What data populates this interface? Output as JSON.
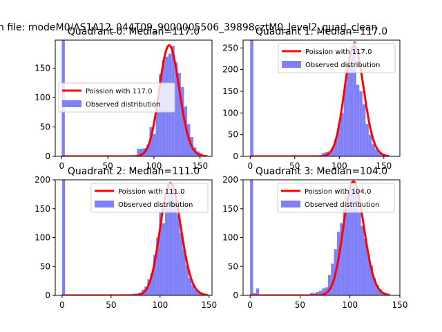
{
  "suptitle": "n file: modeM0/AS1A12_044T09_9000005506_39898cztM0_level2_quad_clean",
  "colors": {
    "bar": "#8080f8",
    "curve": "#ff0000",
    "axis": "#000000",
    "legend_edge": "#cccccc"
  },
  "chart_data": [
    {
      "type": "bar",
      "title": "Quadrant 0: Median=117.0",
      "xlim": [
        -7,
        163
      ],
      "ylim": [
        0,
        198
      ],
      "xticks": [
        0,
        50,
        100,
        150
      ],
      "yticks": [
        0,
        50,
        100,
        150
      ],
      "legend_position": "center-left",
      "series": [
        {
          "name": "Poission with 117.0",
          "kind": "line",
          "mean": 117.0,
          "peak": 189
        },
        {
          "name": "Observed distribution",
          "kind": "histogram",
          "bins": [
            {
              "x0": 0,
              "x1": 3.4,
              "y": 198
            },
            {
              "x0": 81.6,
              "x1": 85,
              "y": 13
            },
            {
              "x0": 85,
              "x1": 88.4,
              "y": 13
            },
            {
              "x0": 88.4,
              "x1": 91.8,
              "y": 14
            },
            {
              "x0": 91.8,
              "x1": 95.2,
              "y": 20
            },
            {
              "x0": 95.2,
              "x1": 98.6,
              "y": 50
            },
            {
              "x0": 98.6,
              "x1": 102,
              "y": 38
            },
            {
              "x0": 102,
              "x1": 105.4,
              "y": 83
            },
            {
              "x0": 105.4,
              "x1": 108.8,
              "y": 140
            },
            {
              "x0": 108.8,
              "x1": 112.2,
              "y": 163
            },
            {
              "x0": 112.2,
              "x1": 115.6,
              "y": 170
            },
            {
              "x0": 115.6,
              "x1": 119,
              "y": 175
            },
            {
              "x0": 119,
              "x1": 122.4,
              "y": 188
            },
            {
              "x0": 122.4,
              "x1": 125.8,
              "y": 160
            },
            {
              "x0": 125.8,
              "x1": 129.2,
              "y": 142
            },
            {
              "x0": 129.2,
              "x1": 132.6,
              "y": 118
            },
            {
              "x0": 132.6,
              "x1": 136,
              "y": 85
            },
            {
              "x0": 136,
              "x1": 139.4,
              "y": 55
            },
            {
              "x0": 139.4,
              "x1": 142.8,
              "y": 33
            },
            {
              "x0": 142.8,
              "x1": 146.2,
              "y": 15
            },
            {
              "x0": 146.2,
              "x1": 149.6,
              "y": 8
            },
            {
              "x0": 149.6,
              "x1": 153,
              "y": 5
            },
            {
              "x0": 153,
              "x1": 156.4,
              "y": 2
            }
          ]
        }
      ]
    },
    {
      "type": "bar",
      "title": "Quadrant 1: Median=117.0",
      "xlim": [
        -8,
        168
      ],
      "ylim": [
        0,
        268
      ],
      "xticks": [
        0,
        50,
        100,
        150
      ],
      "yticks": [
        0,
        50,
        100,
        150,
        200,
        250
      ],
      "legend_position": "upper-right",
      "series": [
        {
          "name": "Poission with 117.0",
          "kind": "line",
          "mean": 117.0,
          "peak": 255
        },
        {
          "name": "Observed distribution",
          "kind": "histogram",
          "bins": [
            {
              "x0": 0,
              "x1": 3.5,
              "y": 268
            },
            {
              "x0": 80.5,
              "x1": 84,
              "y": 8
            },
            {
              "x0": 84,
              "x1": 87.5,
              "y": 10
            },
            {
              "x0": 87.5,
              "x1": 91,
              "y": 12
            },
            {
              "x0": 91,
              "x1": 94.5,
              "y": 20
            },
            {
              "x0": 94.5,
              "x1": 98,
              "y": 40
            },
            {
              "x0": 98,
              "x1": 101.5,
              "y": 75
            },
            {
              "x0": 101.5,
              "x1": 105,
              "y": 100
            },
            {
              "x0": 105,
              "x1": 108.5,
              "y": 165
            },
            {
              "x0": 108.5,
              "x1": 112,
              "y": 210
            },
            {
              "x0": 112,
              "x1": 115.5,
              "y": 245
            },
            {
              "x0": 115.5,
              "x1": 119,
              "y": 265
            },
            {
              "x0": 119,
              "x1": 122.5,
              "y": 165
            },
            {
              "x0": 122.5,
              "x1": 126,
              "y": 150
            },
            {
              "x0": 126,
              "x1": 129.5,
              "y": 120
            },
            {
              "x0": 129.5,
              "x1": 133,
              "y": 75
            },
            {
              "x0": 133,
              "x1": 136.5,
              "y": 50
            },
            {
              "x0": 136.5,
              "x1": 140,
              "y": 28
            },
            {
              "x0": 140,
              "x1": 143.5,
              "y": 16
            },
            {
              "x0": 143.5,
              "x1": 147,
              "y": 8
            },
            {
              "x0": 147,
              "x1": 150.5,
              "y": 5
            },
            {
              "x0": 150.5,
              "x1": 154,
              "y": 3
            }
          ]
        }
      ]
    },
    {
      "type": "bar",
      "title": "Quadrant 2: Median=111.0",
      "xlim": [
        -7,
        153
      ],
      "ylim": [
        0,
        200
      ],
      "xticks": [
        0,
        50,
        100,
        150
      ],
      "yticks": [
        0,
        50,
        100,
        150,
        200
      ],
      "legend_position": "upper-right",
      "series": [
        {
          "name": "Poission with 111.0",
          "kind": "line",
          "mean": 111.0,
          "peak": 194
        },
        {
          "name": "Observed distribution",
          "kind": "histogram",
          "bins": [
            {
              "x0": 0,
              "x1": 3,
              "y": 200
            },
            {
              "x0": 57,
              "x1": 60,
              "y": 1
            },
            {
              "x0": 63,
              "x1": 66,
              "y": 1
            },
            {
              "x0": 66,
              "x1": 69,
              "y": 2
            },
            {
              "x0": 69,
              "x1": 72,
              "y": 2
            },
            {
              "x0": 72,
              "x1": 75,
              "y": 3
            },
            {
              "x0": 75,
              "x1": 78,
              "y": 3
            },
            {
              "x0": 78,
              "x1": 81,
              "y": 5
            },
            {
              "x0": 81,
              "x1": 84,
              "y": 10
            },
            {
              "x0": 84,
              "x1": 87,
              "y": 15
            },
            {
              "x0": 87,
              "x1": 90,
              "y": 28
            },
            {
              "x0": 90,
              "x1": 93,
              "y": 38
            },
            {
              "x0": 93,
              "x1": 96,
              "y": 70
            },
            {
              "x0": 96,
              "x1": 99,
              "y": 100
            },
            {
              "x0": 99,
              "x1": 102,
              "y": 143
            },
            {
              "x0": 102,
              "x1": 105,
              "y": 125
            },
            {
              "x0": 105,
              "x1": 108,
              "y": 160
            },
            {
              "x0": 108,
              "x1": 111,
              "y": 190
            },
            {
              "x0": 111,
              "x1": 114,
              "y": 185
            },
            {
              "x0": 114,
              "x1": 117,
              "y": 165
            },
            {
              "x0": 117,
              "x1": 120,
              "y": 140
            },
            {
              "x0": 120,
              "x1": 123,
              "y": 108
            },
            {
              "x0": 123,
              "x1": 126,
              "y": 80
            },
            {
              "x0": 126,
              "x1": 129,
              "y": 52
            },
            {
              "x0": 129,
              "x1": 132,
              "y": 30
            },
            {
              "x0": 132,
              "x1": 135,
              "y": 18
            },
            {
              "x0": 135,
              "x1": 138,
              "y": 10
            },
            {
              "x0": 138,
              "x1": 141,
              "y": 8
            },
            {
              "x0": 141,
              "x1": 144,
              "y": 4
            },
            {
              "x0": 144,
              "x1": 147,
              "y": 2
            }
          ]
        }
      ]
    },
    {
      "type": "bar",
      "title": "Quadrant 3: Median=104.0",
      "xlim": [
        -7,
        150
      ],
      "ylim": [
        0,
        200
      ],
      "xticks": [
        0,
        50,
        100,
        150
      ],
      "yticks": [
        0,
        50,
        100,
        150,
        200
      ],
      "legend_position": "upper-right",
      "series": [
        {
          "name": "Poission with 104.0",
          "kind": "line",
          "mean": 104.0,
          "peak": 197
        },
        {
          "name": "Observed distribution",
          "kind": "histogram",
          "bins": [
            {
              "x0": 0,
              "x1": 3,
              "y": 200
            },
            {
              "x0": 3,
              "x1": 6,
              "y": 4
            },
            {
              "x0": 6,
              "x1": 9,
              "y": 12
            },
            {
              "x0": 45,
              "x1": 48,
              "y": 1
            },
            {
              "x0": 54,
              "x1": 57,
              "y": 1
            },
            {
              "x0": 60,
              "x1": 63,
              "y": 4
            },
            {
              "x0": 63,
              "x1": 66,
              "y": 4
            },
            {
              "x0": 66,
              "x1": 69,
              "y": 6
            },
            {
              "x0": 69,
              "x1": 72,
              "y": 8
            },
            {
              "x0": 72,
              "x1": 75,
              "y": 12
            },
            {
              "x0": 75,
              "x1": 78,
              "y": 14
            },
            {
              "x0": 78,
              "x1": 81,
              "y": 35
            },
            {
              "x0": 81,
              "x1": 84,
              "y": 55
            },
            {
              "x0": 84,
              "x1": 87,
              "y": 80
            },
            {
              "x0": 87,
              "x1": 90,
              "y": 110
            },
            {
              "x0": 90,
              "x1": 93,
              "y": 125
            },
            {
              "x0": 93,
              "x1": 96,
              "y": 150
            },
            {
              "x0": 96,
              "x1": 99,
              "y": 170
            },
            {
              "x0": 99,
              "x1": 102,
              "y": 185
            },
            {
              "x0": 102,
              "x1": 105,
              "y": 190
            },
            {
              "x0": 105,
              "x1": 108,
              "y": 183
            },
            {
              "x0": 108,
              "x1": 111,
              "y": 145
            },
            {
              "x0": 111,
              "x1": 114,
              "y": 120
            },
            {
              "x0": 114,
              "x1": 117,
              "y": 98
            },
            {
              "x0": 117,
              "x1": 120,
              "y": 70
            },
            {
              "x0": 120,
              "x1": 123,
              "y": 52
            },
            {
              "x0": 123,
              "x1": 126,
              "y": 30
            },
            {
              "x0": 126,
              "x1": 129,
              "y": 18
            },
            {
              "x0": 129,
              "x1": 132,
              "y": 10
            },
            {
              "x0": 132,
              "x1": 135,
              "y": 5
            },
            {
              "x0": 135,
              "x1": 138,
              "y": 3
            }
          ]
        }
      ]
    }
  ]
}
